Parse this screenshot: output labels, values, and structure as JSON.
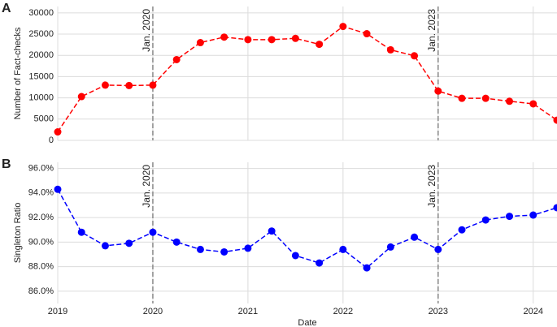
{
  "chart_data": [
    {
      "type": "line",
      "panel_label": "A",
      "y_label": "Number of Fact-checks",
      "x": [
        2019,
        2019.25,
        2019.5,
        2019.75,
        2020,
        2020.25,
        2020.5,
        2020.75,
        2021,
        2021.25,
        2021.5,
        2021.75,
        2022,
        2022.25,
        2022.5,
        2022.75,
        2023,
        2023.25,
        2023.5,
        2023.75,
        2024,
        2024.25
      ],
      "series": [
        {
          "color": "#ff0000",
          "values": [
            2000,
            10300,
            13000,
            12900,
            13000,
            19000,
            23000,
            24300,
            23700,
            23700,
            24000,
            22600,
            26800,
            25100,
            21300,
            19900,
            11600,
            9900,
            9900,
            9200,
            8600,
            4750
          ]
        }
      ],
      "xlim": [
        2019,
        2024.25
      ],
      "ylim": [
        0,
        31500
      ],
      "yticks": [
        0,
        5000,
        10000,
        15000,
        20000,
        25000,
        30000
      ],
      "annotations": [
        {
          "x": 2020,
          "label": "Jan. 2020"
        },
        {
          "x": 2023,
          "label": "Jan. 2023"
        }
      ],
      "grid": true
    },
    {
      "type": "line",
      "panel_label": "B",
      "y_label": "Singleton Ratio",
      "x_label": "Date",
      "x": [
        2019,
        2019.25,
        2019.5,
        2019.75,
        2020,
        2020.25,
        2020.5,
        2020.75,
        2021,
        2021.25,
        2021.5,
        2021.75,
        2022,
        2022.25,
        2022.5,
        2022.75,
        2023,
        2023.25,
        2023.5,
        2023.75,
        2024,
        2024.25
      ],
      "series": [
        {
          "color": "#0000ff",
          "values": [
            94.3,
            90.8,
            89.7,
            89.9,
            90.8,
            90.0,
            89.4,
            89.2,
            89.5,
            90.9,
            88.9,
            88.3,
            89.4,
            87.9,
            89.6,
            90.4,
            89.4,
            91.0,
            91.8,
            92.1,
            92.2,
            92.8
          ]
        }
      ],
      "xlim": [
        2019,
        2024.25
      ],
      "xticks": [
        2019,
        2020,
        2021,
        2022,
        2023,
        2024
      ],
      "ylim": [
        85,
        96.5
      ],
      "yticks": [
        {
          "value": 86,
          "label": "86.0%"
        },
        {
          "value": 88,
          "label": "88.0%"
        },
        {
          "value": 90,
          "label": "90.0%"
        },
        {
          "value": 92,
          "label": "92.0%"
        },
        {
          "value": 94,
          "label": "94.0%"
        },
        {
          "value": 96,
          "label": "96.0%"
        }
      ],
      "annotations": [
        {
          "x": 2020,
          "label": "Jan. 2020"
        },
        {
          "x": 2023,
          "label": "Jan. 2023"
        }
      ],
      "grid": true
    }
  ]
}
